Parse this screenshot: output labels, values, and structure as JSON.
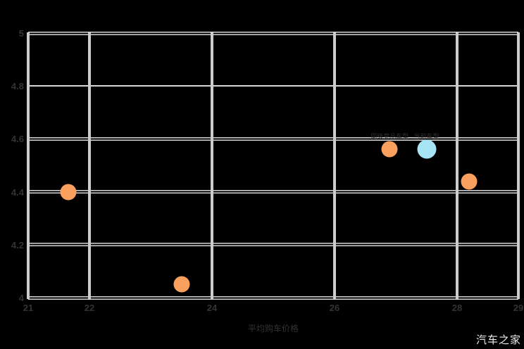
{
  "watermark": "汽车之家",
  "chart_data": {
    "type": "scatter",
    "title": "",
    "xlabel": "平均购车价格",
    "ylabel": "",
    "xlim": [
      21,
      29
    ],
    "ylim": [
      4,
      5
    ],
    "grid": true,
    "legend": "none",
    "x_ticks": [
      {
        "value": 21,
        "label": "21"
      },
      {
        "value": 22,
        "label": "22"
      },
      {
        "value": 24,
        "label": "24"
      },
      {
        "value": 26,
        "label": "26"
      },
      {
        "value": 28,
        "label": "28"
      },
      {
        "value": 29,
        "label": "29"
      }
    ],
    "y_ticks": [
      {
        "value": 4,
        "label": "4",
        "line": "double"
      },
      {
        "value": 4.2,
        "label": "4.2",
        "line": "double"
      },
      {
        "value": 4.4,
        "label": "4.4",
        "line": "double"
      },
      {
        "value": 4.6,
        "label": "4.6",
        "line": "double"
      },
      {
        "value": 4.8,
        "label": "4.8",
        "line": "single"
      },
      {
        "value": 5,
        "label": "5",
        "line": "double"
      }
    ],
    "series": [
      {
        "name": "orange-series",
        "color": "#faa05e",
        "points": [
          {
            "x": 21.65,
            "y": 4.4,
            "label": ""
          },
          {
            "x": 23.5,
            "y": 4.05,
            "label": ""
          },
          {
            "x": 26.9,
            "y": 4.56,
            "label": "同级竞品车型"
          },
          {
            "x": 28.2,
            "y": 4.44,
            "label": ""
          }
        ]
      },
      {
        "name": "blue-series",
        "color": "#a6e5f5",
        "points": [
          {
            "x": 27.5,
            "y": 4.56,
            "label": "当前车型"
          }
        ]
      }
    ],
    "colors": {
      "background": "#000000",
      "gridline": "#cccccc",
      "tick_text": "#333333",
      "watermark_text": "#ededed"
    }
  }
}
